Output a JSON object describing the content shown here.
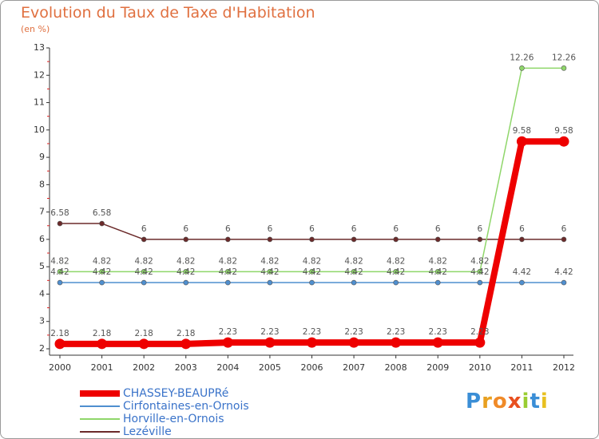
{
  "chart_data": {
    "type": "line",
    "title": "Evolution du Taux de Taxe d'Habitation",
    "subtitle": "(en %)",
    "xlabel": "",
    "ylabel": "",
    "ylim": [
      2,
      13
    ],
    "y_ticks": [
      "2",
      "3",
      "4",
      "5",
      "6",
      "7",
      "8",
      "9",
      "10",
      "11",
      "12",
      "13"
    ],
    "categories": [
      "2000",
      "2001",
      "2002",
      "2003",
      "2004",
      "2005",
      "2006",
      "2007",
      "2008",
      "2009",
      "2010",
      "2011",
      "2012"
    ],
    "series": [
      {
        "name": "Lezéville",
        "color": "#6b2a2a",
        "values": [
          6.58,
          6.58,
          6,
          6,
          6,
          6,
          6,
          6,
          6,
          6,
          6,
          6,
          6
        ],
        "labels": [
          "6.58",
          "6.58",
          "6",
          "6",
          "6",
          "6",
          "6",
          "6",
          "6",
          "6",
          "6",
          "6",
          "6"
        ]
      },
      {
        "name": "Cirfontaines-en-Ornois",
        "color": "#4f8fcf",
        "values": [
          4.42,
          4.42,
          4.42,
          4.42,
          4.42,
          4.42,
          4.42,
          4.42,
          4.42,
          4.42,
          4.42,
          4.42,
          4.42
        ],
        "labels": [
          "4.42",
          "4.42",
          "4.42",
          "4.42",
          "4.42",
          "4.42",
          "4.42",
          "4.42",
          "4.42",
          "4.42",
          "4.42",
          "4.42",
          "4.42"
        ]
      },
      {
        "name": "Horville-en-Ornois",
        "color": "#8fd66a",
        "values": [
          4.82,
          4.82,
          4.82,
          4.82,
          4.82,
          4.82,
          4.82,
          4.82,
          4.82,
          4.82,
          4.82,
          12.26,
          12.26
        ],
        "labels": [
          "4.82",
          "4.82",
          "4.82",
          "4.82",
          "4.82",
          "4.82",
          "4.82",
          "4.82",
          "4.82",
          "4.82",
          "4.82",
          "12.26",
          "12.26"
        ]
      },
      {
        "name": "CHASSEY-BEAUPRé",
        "color": "#ee0000",
        "values": [
          2.18,
          2.18,
          2.18,
          2.18,
          2.23,
          2.23,
          2.23,
          2.23,
          2.23,
          2.23,
          2.23,
          9.58,
          9.58
        ],
        "labels": [
          "2.18",
          "2.18",
          "2.18",
          "2.18",
          "2.23",
          "2.23",
          "2.23",
          "2.23",
          "2.23",
          "2.23",
          "2.23",
          "9.58",
          "9.58"
        ]
      }
    ],
    "legend_order": [
      "CHASSEY-BEAUPRé",
      "Cirfontaines-en-Ornois",
      "Horville-en-Ornois",
      "Lezéville"
    ]
  },
  "logo": {
    "letters": [
      "P",
      "r",
      "o",
      "x",
      "i",
      "t",
      "i"
    ],
    "colors": [
      "#3a8ed6",
      "#e8a020",
      "#f08a28",
      "#e85020",
      "#9acd32",
      "#3a8ed6",
      "#e8c020"
    ]
  }
}
